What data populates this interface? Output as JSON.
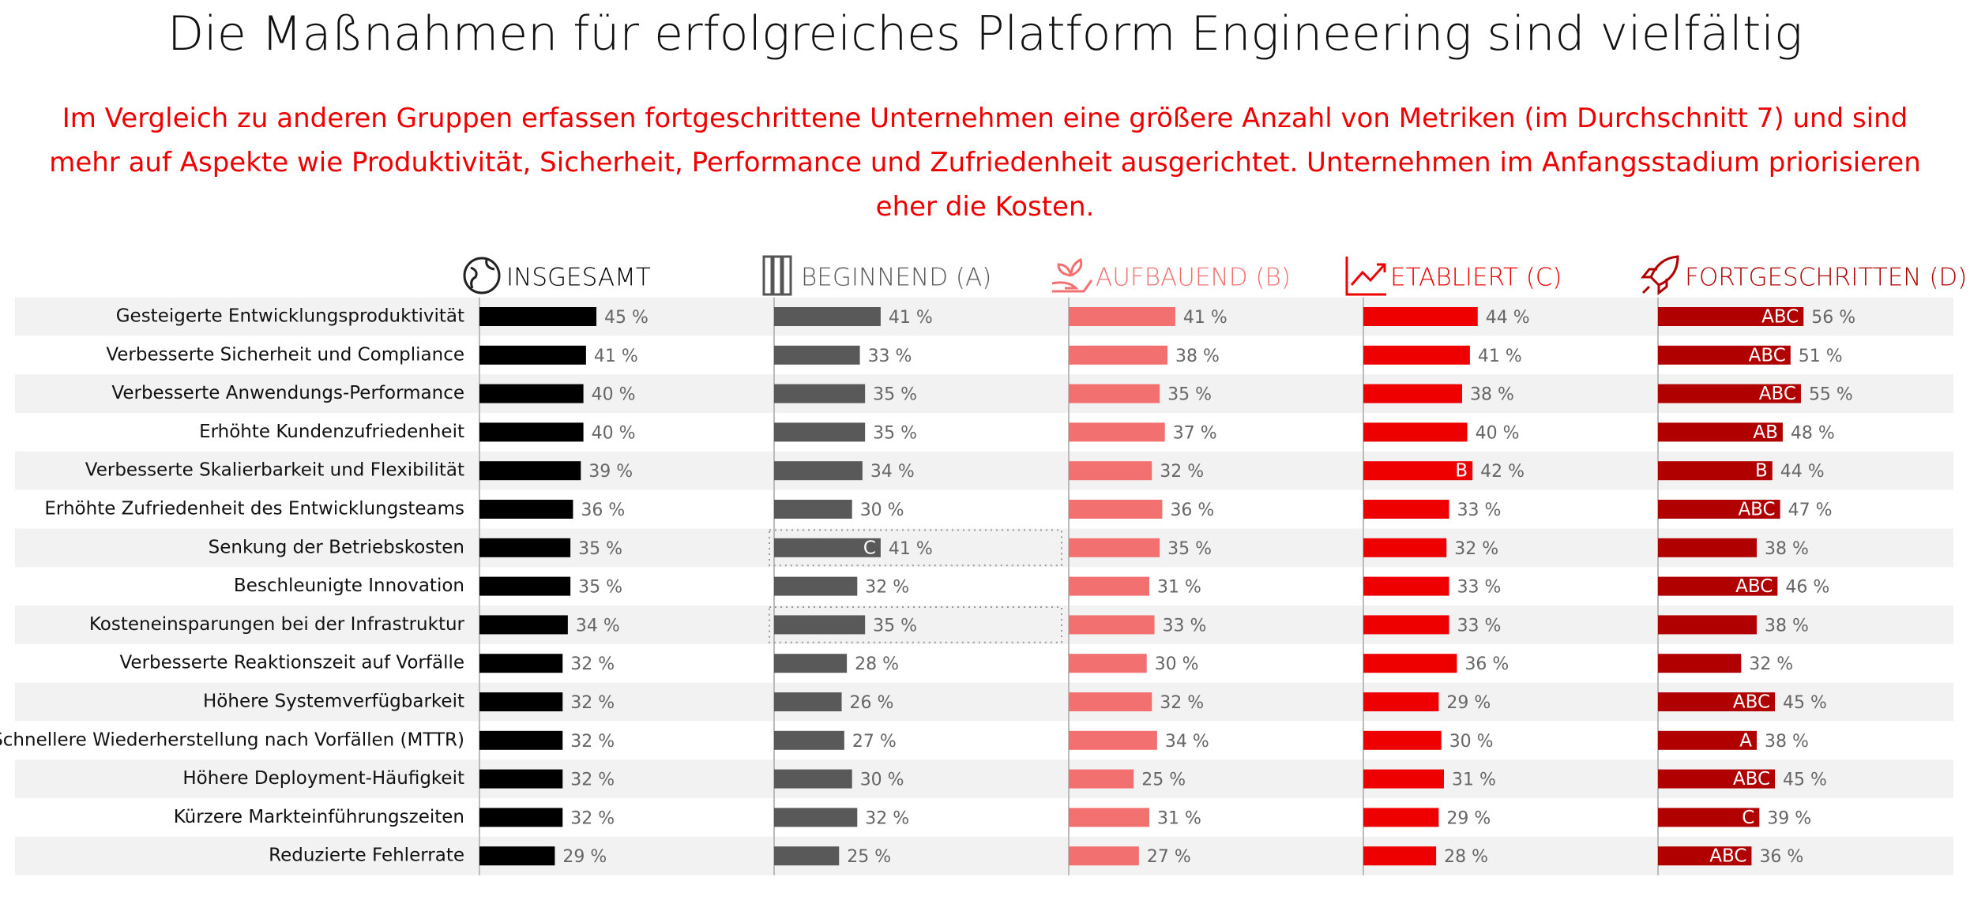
{
  "chart_data": {
    "type": "bar",
    "title": "Die Maßnahmen für erfolgreiches Platform Engineering sind vielfältig",
    "subtitle": "Im Vergleich zu anderen Gruppen erfassen fortgeschrittene Unternehmen eine größere Anzahl von Metriken (im Durchschnitt 7) und sind mehr auf Aspekte wie Produktivität, Sicherheit, Performance und Zufriedenheit ausgerichtet. Unternehmen im Anfangsstadium priorisieren eher die Kosten.",
    "categories": [
      "Gesteigerte Entwicklungsproduktivität",
      "Verbesserte Sicherheit und Compliance",
      "Verbesserte Anwendungs-Performance",
      "Erhöhte Kundenzufriedenheit",
      "Verbesserte Skalierbarkeit und Flexibilität",
      "Erhöhte Zufriedenheit des Entwicklungsteams",
      "Senkung der Betriebskosten",
      "Beschleunigte Innovation",
      "Kosteneinsparungen bei der Infrastruktur",
      "Verbesserte Reaktionszeit auf Vorfälle",
      "Höhere Systemverfügbarkeit",
      "Schnellere Wiederherstellung nach Vorfällen (MTTR)",
      "Höhere Deployment-Häufigkeit",
      "Kürzere Markteinführungszeiten",
      "Reduzierte Fehlerrate"
    ],
    "xlim": [
      0,
      100
    ],
    "series": [
      {
        "name": "INSGESAMT",
        "color": "#000000",
        "values": [
          45,
          41,
          40,
          40,
          39,
          36,
          35,
          35,
          34,
          32,
          32,
          32,
          32,
          32,
          29
        ],
        "value_labels": [
          "45 %",
          "41 %",
          "40 %",
          "40 %",
          "39 %",
          "36 %",
          "35 %",
          "35 %",
          "34 %",
          "32 %",
          "32 %",
          "32 %",
          "32 %",
          "32 %",
          "29 %"
        ]
      },
      {
        "name": "BEGINNEND (A)",
        "color": "#595959",
        "values": [
          41,
          33,
          35,
          35,
          34,
          30,
          41,
          32,
          35,
          28,
          26,
          27,
          30,
          32,
          25
        ],
        "value_labels": [
          "41 %",
          "33 %",
          "35 %",
          "35 %",
          "34 %",
          "30 %",
          "41 %",
          "32 %",
          "35 %",
          "28 %",
          "26 %",
          "27 %",
          "30 %",
          "32 %",
          "25 %"
        ],
        "significance": [
          null,
          null,
          null,
          null,
          null,
          null,
          "C",
          null,
          null,
          null,
          null,
          null,
          null,
          null,
          null
        ],
        "highlight_categories": [
          "Senkung der Betriebskosten",
          "Kosteneinsparungen bei der Infrastruktur"
        ]
      },
      {
        "name": "AUFBAUEND (B)",
        "color": "#f37070",
        "values": [
          41,
          38,
          35,
          37,
          32,
          36,
          35,
          31,
          33,
          30,
          32,
          34,
          25,
          31,
          27
        ],
        "value_labels": [
          "41 %",
          "38 %",
          "35 %",
          "37 %",
          "32 %",
          "36 %",
          "35 %",
          "31 %",
          "33 %",
          "30 %",
          "32 %",
          "34 %",
          "25 %",
          "31 %",
          "27 %"
        ]
      },
      {
        "name": "ETABLIERT (C)",
        "color": "#ee0000",
        "values": [
          44,
          41,
          38,
          40,
          42,
          33,
          32,
          33,
          33,
          36,
          29,
          30,
          31,
          29,
          28
        ],
        "value_labels": [
          "44 %",
          "41 %",
          "38 %",
          "40 %",
          "42 %",
          "33 %",
          "32 %",
          "33 %",
          "33 %",
          "36 %",
          "29 %",
          "30 %",
          "31 %",
          "29 %",
          "28 %"
        ],
        "significance": [
          null,
          null,
          null,
          null,
          "B",
          null,
          null,
          null,
          null,
          null,
          null,
          null,
          null,
          null,
          null
        ]
      },
      {
        "name": "FORTGESCHRITTEN (D)",
        "color": "#b00000",
        "values": [
          56,
          51,
          55,
          48,
          44,
          47,
          38,
          46,
          38,
          32,
          45,
          38,
          45,
          39,
          36
        ],
        "value_labels": [
          "56 %",
          "51 %",
          "55 %",
          "48 %",
          "44 %",
          "47 %",
          "38 %",
          "46 %",
          "38 %",
          "32 %",
          "45 %",
          "38 %",
          "45 %",
          "39 %",
          "36 %"
        ],
        "significance": [
          "ABC",
          "ABC",
          "ABC",
          "AB",
          "B",
          "ABC",
          null,
          "ABC",
          null,
          null,
          "ABC",
          "A",
          "ABC",
          "C",
          "ABC"
        ]
      }
    ]
  }
}
